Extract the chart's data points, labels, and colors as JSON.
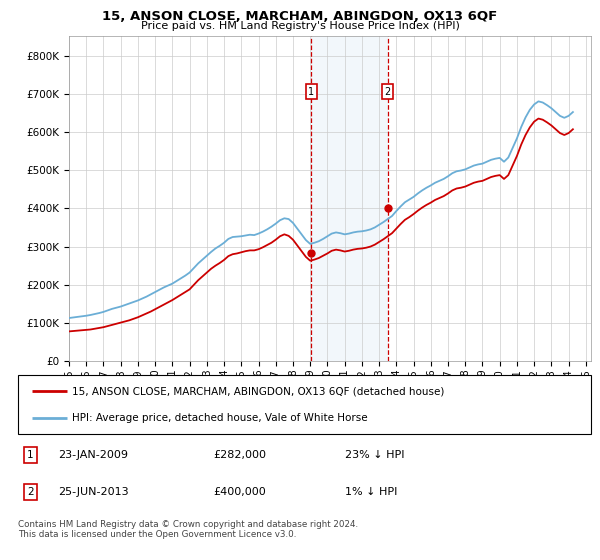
{
  "title": "15, ANSON CLOSE, MARCHAM, ABINGDON, OX13 6QF",
  "subtitle": "Price paid vs. HM Land Registry's House Price Index (HPI)",
  "legend_line1": "15, ANSON CLOSE, MARCHAM, ABINGDON, OX13 6QF (detached house)",
  "legend_line2": "HPI: Average price, detached house, Vale of White Horse",
  "annotation1_label": "1",
  "annotation1_date": "23-JAN-2009",
  "annotation1_price": "£282,000",
  "annotation1_note": "23% ↓ HPI",
  "annotation1_year": 2009.07,
  "annotation1_value": 282000,
  "annotation2_label": "2",
  "annotation2_date": "25-JUN-2013",
  "annotation2_price": "£400,000",
  "annotation2_note": "1% ↓ HPI",
  "annotation2_year": 2013.5,
  "annotation2_value": 400000,
  "footer": "Contains HM Land Registry data © Crown copyright and database right 2024.\nThis data is licensed under the Open Government Licence v3.0.",
  "hpi_color": "#6baed6",
  "price_color": "#cc0000",
  "shade_color": "#cce0f0",
  "box_color": "#cc0000",
  "ylim_min": 0,
  "ylim_max": 850000,
  "hpi_years": [
    1995.0,
    1995.25,
    1995.5,
    1995.75,
    1996.0,
    1996.25,
    1996.5,
    1996.75,
    1997.0,
    1997.25,
    1997.5,
    1997.75,
    1998.0,
    1998.25,
    1998.5,
    1998.75,
    1999.0,
    1999.25,
    1999.5,
    1999.75,
    2000.0,
    2000.25,
    2000.5,
    2000.75,
    2001.0,
    2001.25,
    2001.5,
    2001.75,
    2002.0,
    2002.25,
    2002.5,
    2002.75,
    2003.0,
    2003.25,
    2003.5,
    2003.75,
    2004.0,
    2004.25,
    2004.5,
    2004.75,
    2005.0,
    2005.25,
    2005.5,
    2005.75,
    2006.0,
    2006.25,
    2006.5,
    2006.75,
    2007.0,
    2007.25,
    2007.5,
    2007.75,
    2008.0,
    2008.25,
    2008.5,
    2008.75,
    2009.0,
    2009.25,
    2009.5,
    2009.75,
    2010.0,
    2010.25,
    2010.5,
    2010.75,
    2011.0,
    2011.25,
    2011.5,
    2011.75,
    2012.0,
    2012.25,
    2012.5,
    2012.75,
    2013.0,
    2013.25,
    2013.5,
    2013.75,
    2014.0,
    2014.25,
    2014.5,
    2014.75,
    2015.0,
    2015.25,
    2015.5,
    2015.75,
    2016.0,
    2016.25,
    2016.5,
    2016.75,
    2017.0,
    2017.25,
    2017.5,
    2017.75,
    2018.0,
    2018.25,
    2018.5,
    2018.75,
    2019.0,
    2019.25,
    2019.5,
    2019.75,
    2020.0,
    2020.25,
    2020.5,
    2020.75,
    2021.0,
    2021.25,
    2021.5,
    2021.75,
    2022.0,
    2022.25,
    2022.5,
    2022.75,
    2023.0,
    2023.25,
    2023.5,
    2023.75,
    2024.0,
    2024.25
  ],
  "hpi_values": [
    113000,
    114500,
    116000,
    117500,
    119000,
    121000,
    123500,
    126000,
    129000,
    133000,
    137000,
    140000,
    143000,
    147000,
    151000,
    155000,
    159000,
    164000,
    169000,
    175000,
    181000,
    187000,
    193000,
    198000,
    203000,
    210000,
    217000,
    224000,
    232000,
    244000,
    256000,
    266000,
    276000,
    286000,
    295000,
    302000,
    310000,
    320000,
    325000,
    326000,
    327000,
    329000,
    331000,
    330000,
    334000,
    339000,
    345000,
    352000,
    360000,
    369000,
    374000,
    372000,
    362000,
    347000,
    332000,
    317000,
    307000,
    310000,
    314000,
    320000,
    327000,
    334000,
    337000,
    335000,
    332000,
    334000,
    337000,
    339000,
    340000,
    342000,
    345000,
    350000,
    357000,
    364000,
    372000,
    380000,
    393000,
    405000,
    416000,
    423000,
    430000,
    439000,
    447000,
    454000,
    460000,
    467000,
    472000,
    477000,
    484000,
    492000,
    497000,
    499000,
    502000,
    507000,
    512000,
    515000,
    517000,
    522000,
    527000,
    530000,
    532000,
    522000,
    533000,
    558000,
    583000,
    613000,
    638000,
    658000,
    672000,
    680000,
    677000,
    670000,
    662000,
    652000,
    642000,
    637000,
    642000,
    652000
  ],
  "price_years": [
    1995.0,
    1995.25,
    1995.5,
    1995.75,
    1996.0,
    1996.25,
    1996.5,
    1996.75,
    1997.0,
    1997.25,
    1997.5,
    1997.75,
    1998.0,
    1998.25,
    1998.5,
    1998.75,
    1999.0,
    1999.25,
    1999.5,
    1999.75,
    2000.0,
    2000.25,
    2000.5,
    2000.75,
    2001.0,
    2001.25,
    2001.5,
    2001.75,
    2002.0,
    2002.25,
    2002.5,
    2002.75,
    2003.0,
    2003.25,
    2003.5,
    2003.75,
    2004.0,
    2004.25,
    2004.5,
    2004.75,
    2005.0,
    2005.25,
    2005.5,
    2005.75,
    2006.0,
    2006.25,
    2006.5,
    2006.75,
    2007.0,
    2007.25,
    2007.5,
    2007.75,
    2008.0,
    2008.25,
    2008.5,
    2008.75,
    2009.0,
    2009.25,
    2009.5,
    2009.75,
    2010.0,
    2010.25,
    2010.5,
    2010.75,
    2011.0,
    2011.25,
    2011.5,
    2011.75,
    2012.0,
    2012.25,
    2012.5,
    2012.75,
    2013.0,
    2013.25,
    2013.5,
    2013.75,
    2014.0,
    2014.25,
    2014.5,
    2014.75,
    2015.0,
    2015.25,
    2015.5,
    2015.75,
    2016.0,
    2016.25,
    2016.5,
    2016.75,
    2017.0,
    2017.25,
    2017.5,
    2017.75,
    2018.0,
    2018.25,
    2018.5,
    2018.75,
    2019.0,
    2019.25,
    2019.5,
    2019.75,
    2020.0,
    2020.25,
    2020.5,
    2020.75,
    2021.0,
    2021.25,
    2021.5,
    2021.75,
    2022.0,
    2022.25,
    2022.5,
    2022.75,
    2023.0,
    2023.25,
    2023.5,
    2023.75,
    2024.0,
    2024.25
  ],
  "price_values": [
    78000,
    79000,
    80000,
    81000,
    82000,
    83000,
    85000,
    87000,
    89000,
    92000,
    95000,
    98000,
    101000,
    104000,
    107000,
    111000,
    115000,
    120000,
    125000,
    130000,
    136000,
    142000,
    148000,
    154000,
    160000,
    167000,
    174000,
    181000,
    188000,
    200000,
    212000,
    222000,
    232000,
    242000,
    250000,
    257000,
    265000,
    275000,
    280000,
    282000,
    285000,
    288000,
    290000,
    290000,
    293000,
    298000,
    304000,
    310000,
    318000,
    327000,
    332000,
    328000,
    318000,
    303000,
    288000,
    273000,
    263000,
    266000,
    270000,
    276000,
    282000,
    289000,
    292000,
    290000,
    287000,
    289000,
    292000,
    294000,
    295000,
    297000,
    300000,
    305000,
    312000,
    319000,
    327000,
    335000,
    347000,
    359000,
    370000,
    377000,
    385000,
    394000,
    402000,
    409000,
    415000,
    422000,
    427000,
    432000,
    439000,
    447000,
    452000,
    454000,
    457000,
    462000,
    467000,
    470000,
    472000,
    477000,
    482000,
    485000,
    487000,
    477000,
    487000,
    512000,
    537000,
    567000,
    592000,
    612000,
    627000,
    635000,
    632000,
    625000,
    617000,
    607000,
    597000,
    592000,
    597000,
    607000
  ],
  "xtick_years": [
    1995,
    1996,
    1997,
    1998,
    1999,
    2000,
    2001,
    2002,
    2003,
    2004,
    2005,
    2006,
    2007,
    2008,
    2009,
    2010,
    2011,
    2012,
    2013,
    2014,
    2015,
    2016,
    2017,
    2018,
    2019,
    2020,
    2021,
    2022,
    2023,
    2024,
    2025
  ],
  "yticks": [
    0,
    100000,
    200000,
    300000,
    400000,
    500000,
    600000,
    700000,
    800000
  ],
  "ytick_labels": [
    "£0",
    "£100K",
    "£200K",
    "£300K",
    "£400K",
    "£500K",
    "£600K",
    "£700K",
    "£800K"
  ]
}
